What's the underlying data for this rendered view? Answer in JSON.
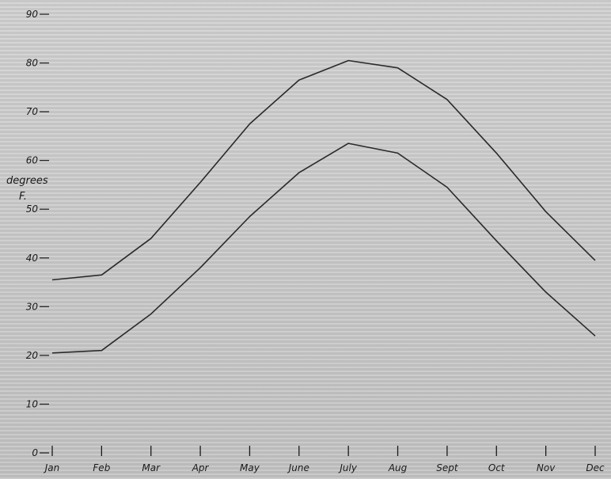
{
  "chart_data": {
    "type": "line",
    "categories": [
      "Jan",
      "Feb",
      "Mar",
      "Apr",
      "May",
      "June",
      "July",
      "Aug",
      "Sept",
      "Oct",
      "Nov",
      "Dec"
    ],
    "series": [
      {
        "values": [
          35.5,
          36.5,
          44,
          55.5,
          67.5,
          76.5,
          80.5,
          79,
          72.5,
          61.5,
          49.5,
          39.5
        ],
        "color": "#2a2a2a"
      },
      {
        "values": [
          20.5,
          21,
          28.5,
          38,
          48.5,
          57.5,
          63.5,
          61.5,
          54.5,
          43.5,
          33,
          24
        ],
        "color": "#2a2a2a"
      }
    ],
    "y_ticks": [
      "0",
      "10",
      "20",
      "30",
      "40",
      "50",
      "60",
      "70",
      "80",
      "90"
    ],
    "ylabel": [
      "degrees",
      "F."
    ],
    "title": "",
    "xlabel": "",
    "ylim": [
      0,
      90
    ],
    "grid": false,
    "legend": "none"
  }
}
